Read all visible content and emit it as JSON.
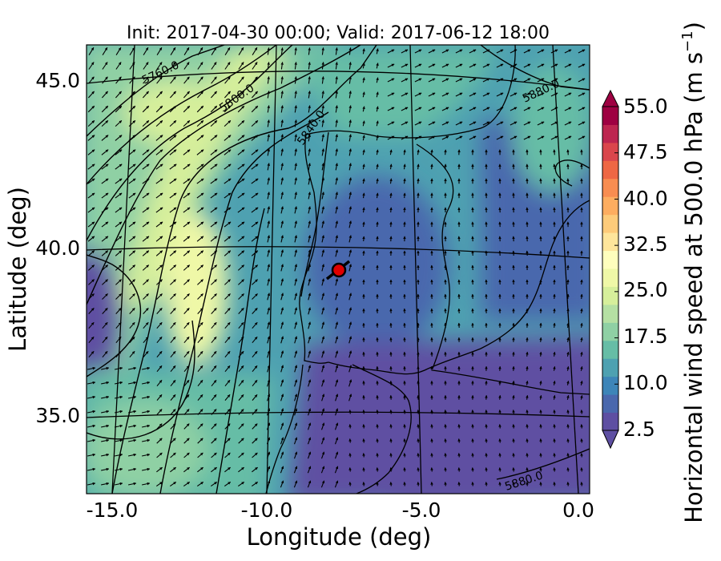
{
  "title": "Init: 2017-04-30 00:00; Valid: 2017-06-12 18:00",
  "xlabel": "Longitude (deg)",
  "ylabel": "Latitude (deg)",
  "colorbar": {
    "label_main": "Horizontal wind speed at 500.0 hPa (m s",
    "label_sup": "−1",
    "label_end": ")",
    "ticks": [
      "55.0",
      "47.5",
      "40.0",
      "32.5",
      "25.0",
      "17.5",
      "10.0",
      "2.5"
    ],
    "vmin": 2.5,
    "vmax": 55.0,
    "extend": "both",
    "colors": [
      "#5e4fa2",
      "#4a68ad",
      "#3d85b8",
      "#4ea1b1",
      "#66bda6",
      "#8fd0a4",
      "#b5e0a3",
      "#d6ef9b",
      "#eff8a7",
      "#fefebd",
      "#fee59b",
      "#fdcb7a",
      "#fdad60",
      "#f88d51",
      "#ee6744",
      "#da464c",
      "#bd2650",
      "#9e0142"
    ]
  },
  "chart_data": {
    "type": "map",
    "title": "Init: 2017-04-30 00:00; Valid: 2017-06-12 18:00",
    "xlabel": "Longitude (deg)",
    "ylabel": "Latitude (deg)",
    "x_ticks": [
      "-15.0",
      "-10.0",
      "-5.0",
      "0.0"
    ],
    "y_ticks": [
      "45.0",
      "40.0",
      "35.0"
    ],
    "xlim": [
      -16,
      0
    ],
    "ylim": [
      33,
      46
    ],
    "field": "Horizontal wind speed at 500.0 hPa",
    "units": "m s-1",
    "contour_labels": [
      "5760.0",
      "5800.0",
      "5840.0",
      "5880.0",
      "5880.0"
    ],
    "marker": {
      "lon": -7.7,
      "lat": 39.3
    },
    "wind_max_region": "west of Portugal, ~ -12.5 lon"
  }
}
